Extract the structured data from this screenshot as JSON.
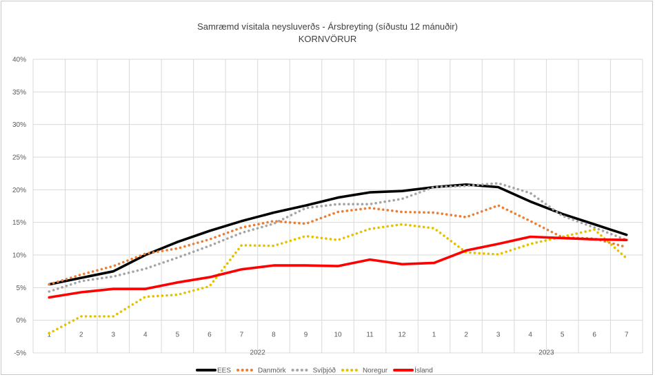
{
  "chart_data": {
    "type": "line",
    "title": "Samræmd vísitala neysluverðs - Ársbreyting (síðustu 12 mánuðir)",
    "subtitle": "KORNVÖRUR",
    "xlabel": "",
    "ylabel": "",
    "x": [
      "1",
      "2",
      "3",
      "4",
      "5",
      "6",
      "7",
      "8",
      "9",
      "10",
      "11",
      "12",
      "1",
      "2",
      "3",
      "4",
      "5",
      "6",
      "7"
    ],
    "year_labels": [
      {
        "label": "2022",
        "after_index": 6
      },
      {
        "label": "2023",
        "after_index": 15
      }
    ],
    "ylim": [
      -5,
      40
    ],
    "yticks": [
      -5,
      0,
      5,
      10,
      15,
      20,
      25,
      30,
      35,
      40
    ],
    "ytick_labels": [
      "-5%",
      "0%",
      "5%",
      "10%",
      "15%",
      "20%",
      "25%",
      "30%",
      "35%",
      "40%"
    ],
    "grid": true,
    "legend_position": "bottom",
    "series": [
      {
        "name": "EES",
        "color": "#000000",
        "style": "solid",
        "values": [
          5.5,
          6.5,
          7.5,
          10.0,
          12.0,
          13.7,
          15.2,
          16.5,
          17.6,
          18.8,
          19.6,
          19.8,
          20.4,
          20.8,
          20.4,
          18.2,
          16.3,
          14.7,
          13.1
        ]
      },
      {
        "name": "Danmörk",
        "color": "#ED7D31",
        "style": "dotted",
        "values": [
          5.5,
          7.0,
          8.3,
          10.2,
          11.0,
          12.4,
          14.2,
          15.2,
          14.8,
          16.6,
          17.2,
          16.6,
          16.5,
          15.8,
          17.6,
          15.2,
          12.7,
          12.5,
          11.2
        ]
      },
      {
        "name": "Svíþjóð",
        "color": "#A5A5A5",
        "style": "dotted",
        "values": [
          4.4,
          6.0,
          6.7,
          7.9,
          9.6,
          11.4,
          13.4,
          14.8,
          17.2,
          17.8,
          17.8,
          18.6,
          20.4,
          20.6,
          21.0,
          19.5,
          16.0,
          14.2,
          12.3
        ]
      },
      {
        "name": "Noregur",
        "color": "#E5C100",
        "style": "dotted",
        "values": [
          -2.0,
          0.6,
          0.6,
          3.6,
          3.9,
          5.2,
          11.5,
          11.4,
          12.9,
          12.3,
          14.0,
          14.7,
          14.1,
          10.4,
          10.1,
          11.7,
          12.8,
          13.9,
          9.5
        ]
      },
      {
        "name": "Ísland",
        "color": "#FF0000",
        "style": "solid",
        "values": [
          3.5,
          4.3,
          4.8,
          4.8,
          5.8,
          6.6,
          7.8,
          8.4,
          8.4,
          8.3,
          9.3,
          8.6,
          8.8,
          10.7,
          11.7,
          12.8,
          12.6,
          12.4,
          12.3
        ]
      }
    ]
  }
}
